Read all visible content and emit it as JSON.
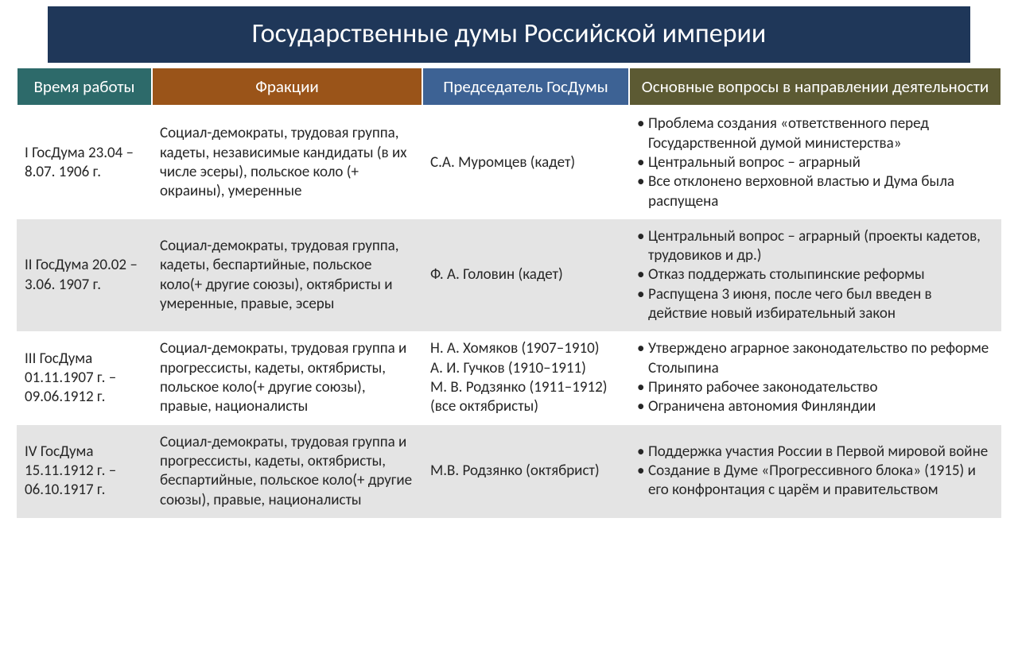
{
  "title": "Государственные думы Российской империи",
  "colors": {
    "title_bg": "#1f3759",
    "header_period_bg": "#2d6a6a",
    "header_factions_bg": "#9a5419",
    "header_chair_bg": "#3d6294",
    "header_issues_bg": "#5c5a33",
    "row_even_bg": "#e4e4e4",
    "row_odd_bg": "#ffffff",
    "text": "#262626"
  },
  "columns": {
    "period": "Время работы",
    "factions": "Фракции",
    "chair": "Председатель ГосДумы",
    "issues": "Основные вопросы в направлении деятельности"
  },
  "rows": [
    {
      "period": "I ГосДума 23.04 –8.07. 1906 г.",
      "factions": "Социал-демократы, трудовая группа, кадеты, независимые кандидаты (в их числе эсеры), польское коло (+ окраины), умеренные",
      "chair": "С.А. Муромцев (кадет)",
      "issues": [
        "Проблема создания «ответственного перед Государственной думой министерства»",
        "Центральный вопрос – аграрный",
        "Все отклонено верховной властью и Дума была распущена"
      ]
    },
    {
      "period": "II ГосДума 20.02 –3.06. 1907 г.",
      "factions": "Социал-демократы, трудовая группа, кадеты, беспартийные, польское коло(+ другие союзы), октябристы и умеренные, правые, эсеры",
      "chair": "Ф. А. Головин (кадет)",
      "issues": [
        "Центральный вопрос – аграрный (проекты кадетов, трудовиков и др.)",
        "Отказ поддержать столыпинские реформы",
        "Распущена 3 июня, после чего был введен в действие новый избирательный закон"
      ]
    },
    {
      "period": "III ГосДума 01.11.1907 г. – 09.06.1912 г.",
      "factions": "Социал-демократы, трудовая группа и прогрессисты, кадеты, октябристы, польское коло(+ другие союзы), правые, националисты",
      "chair": "Н. А. Хомяков (1907–1910)\nА. И. Гучков (1910–1911)\nМ. В. Родзянко (1911–1912) (все октябристы)",
      "issues": [
        "Утверждено аграрное законодательство по реформе Столыпина",
        "Принято рабочее законодательство",
        "Ограничена автономия Финляндии"
      ]
    },
    {
      "period": "IV ГосДума 15.11.1912 г. – 06.10.1917 г.",
      "factions": "Социал-демократы, трудовая группа и прогрессисты, кадеты, октябристы, беспартийные, польское коло(+ другие союзы), правые, националисты",
      "chair": "М.В. Родзянко (октябрист)",
      "issues": [
        "Поддержка участия России в Первой мировой войне",
        "Создание в Думе «Прогрессивного блока» (1915) и его конфронтация с царём и правительством"
      ]
    }
  ]
}
